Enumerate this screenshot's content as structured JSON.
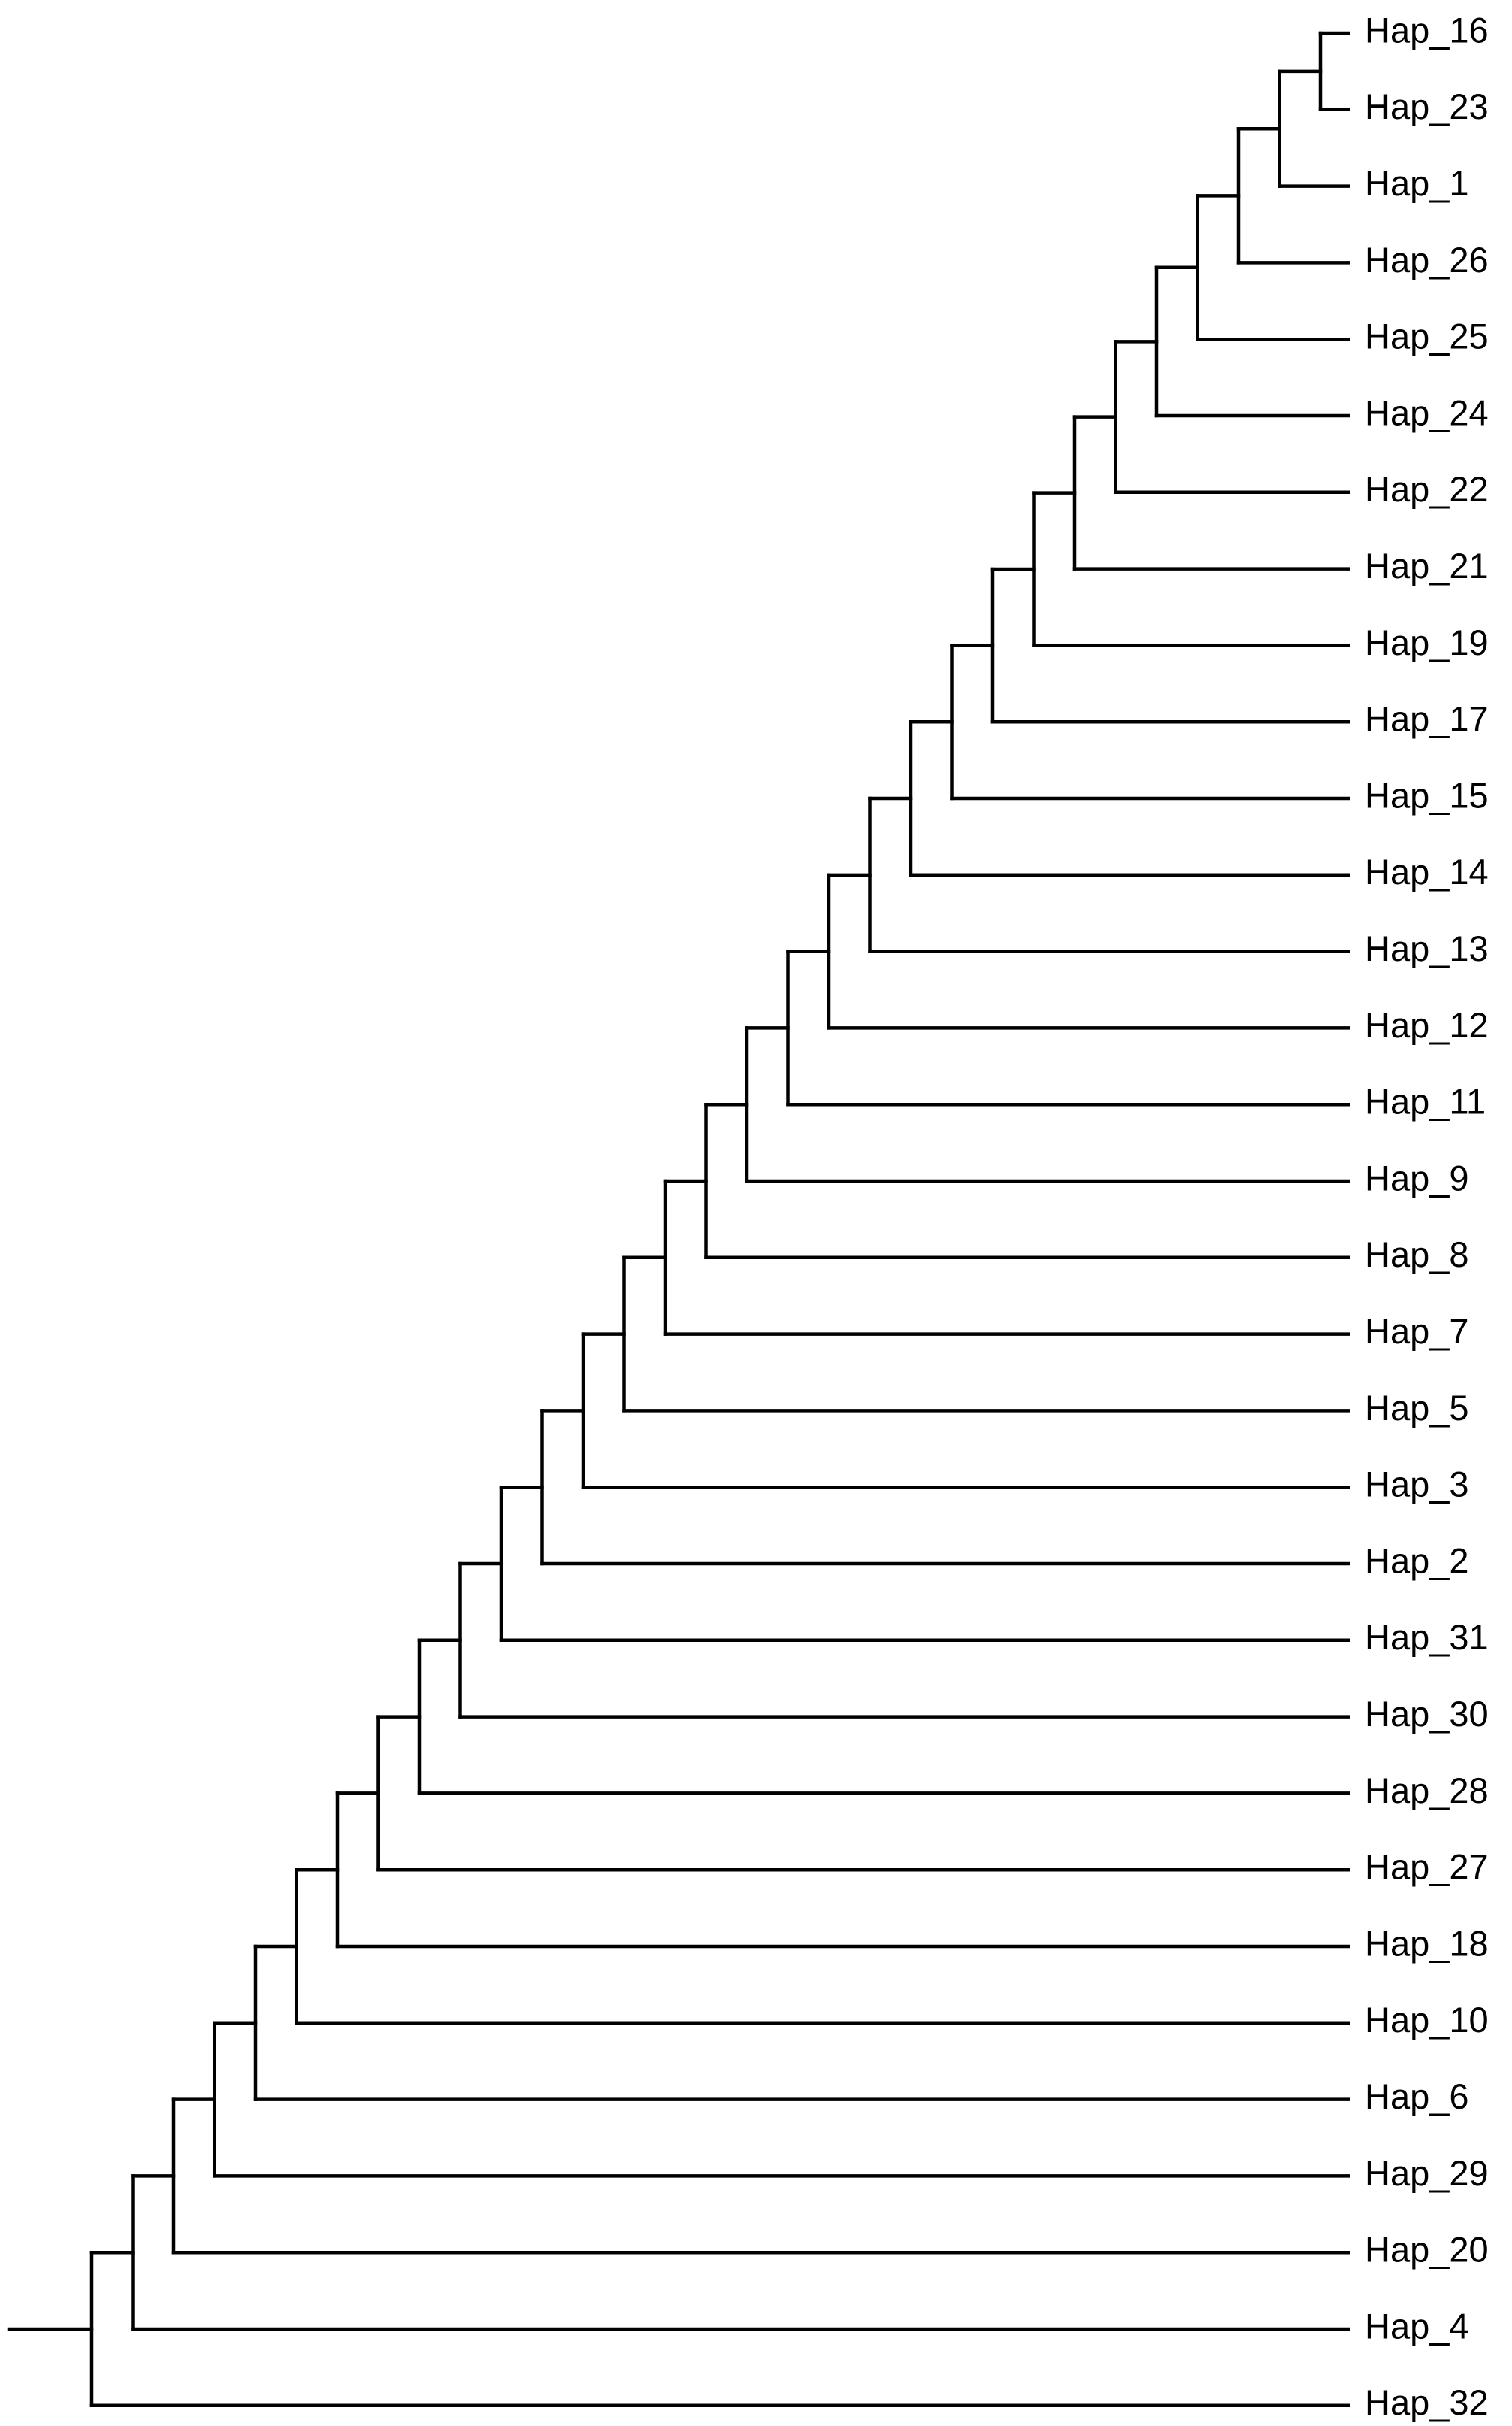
{
  "tree": {
    "leaves": [
      "Hap_16",
      "Hap_23",
      "Hap_1",
      "Hap_26",
      "Hap_25",
      "Hap_24",
      "Hap_22",
      "Hap_21",
      "Hap_19",
      "Hap_17",
      "Hap_15",
      "Hap_14",
      "Hap_13",
      "Hap_12",
      "Hap_11",
      "Hap_9",
      "Hap_8",
      "Hap_7",
      "Hap_5",
      "Hap_3",
      "Hap_2",
      "Hap_31",
      "Hap_30",
      "Hap_28",
      "Hap_27",
      "Hap_18",
      "Hap_10",
      "Hap_6",
      "Hap_29",
      "Hap_20",
      "Hap_4",
      "Hap_32"
    ],
    "line_color": "#000000"
  }
}
